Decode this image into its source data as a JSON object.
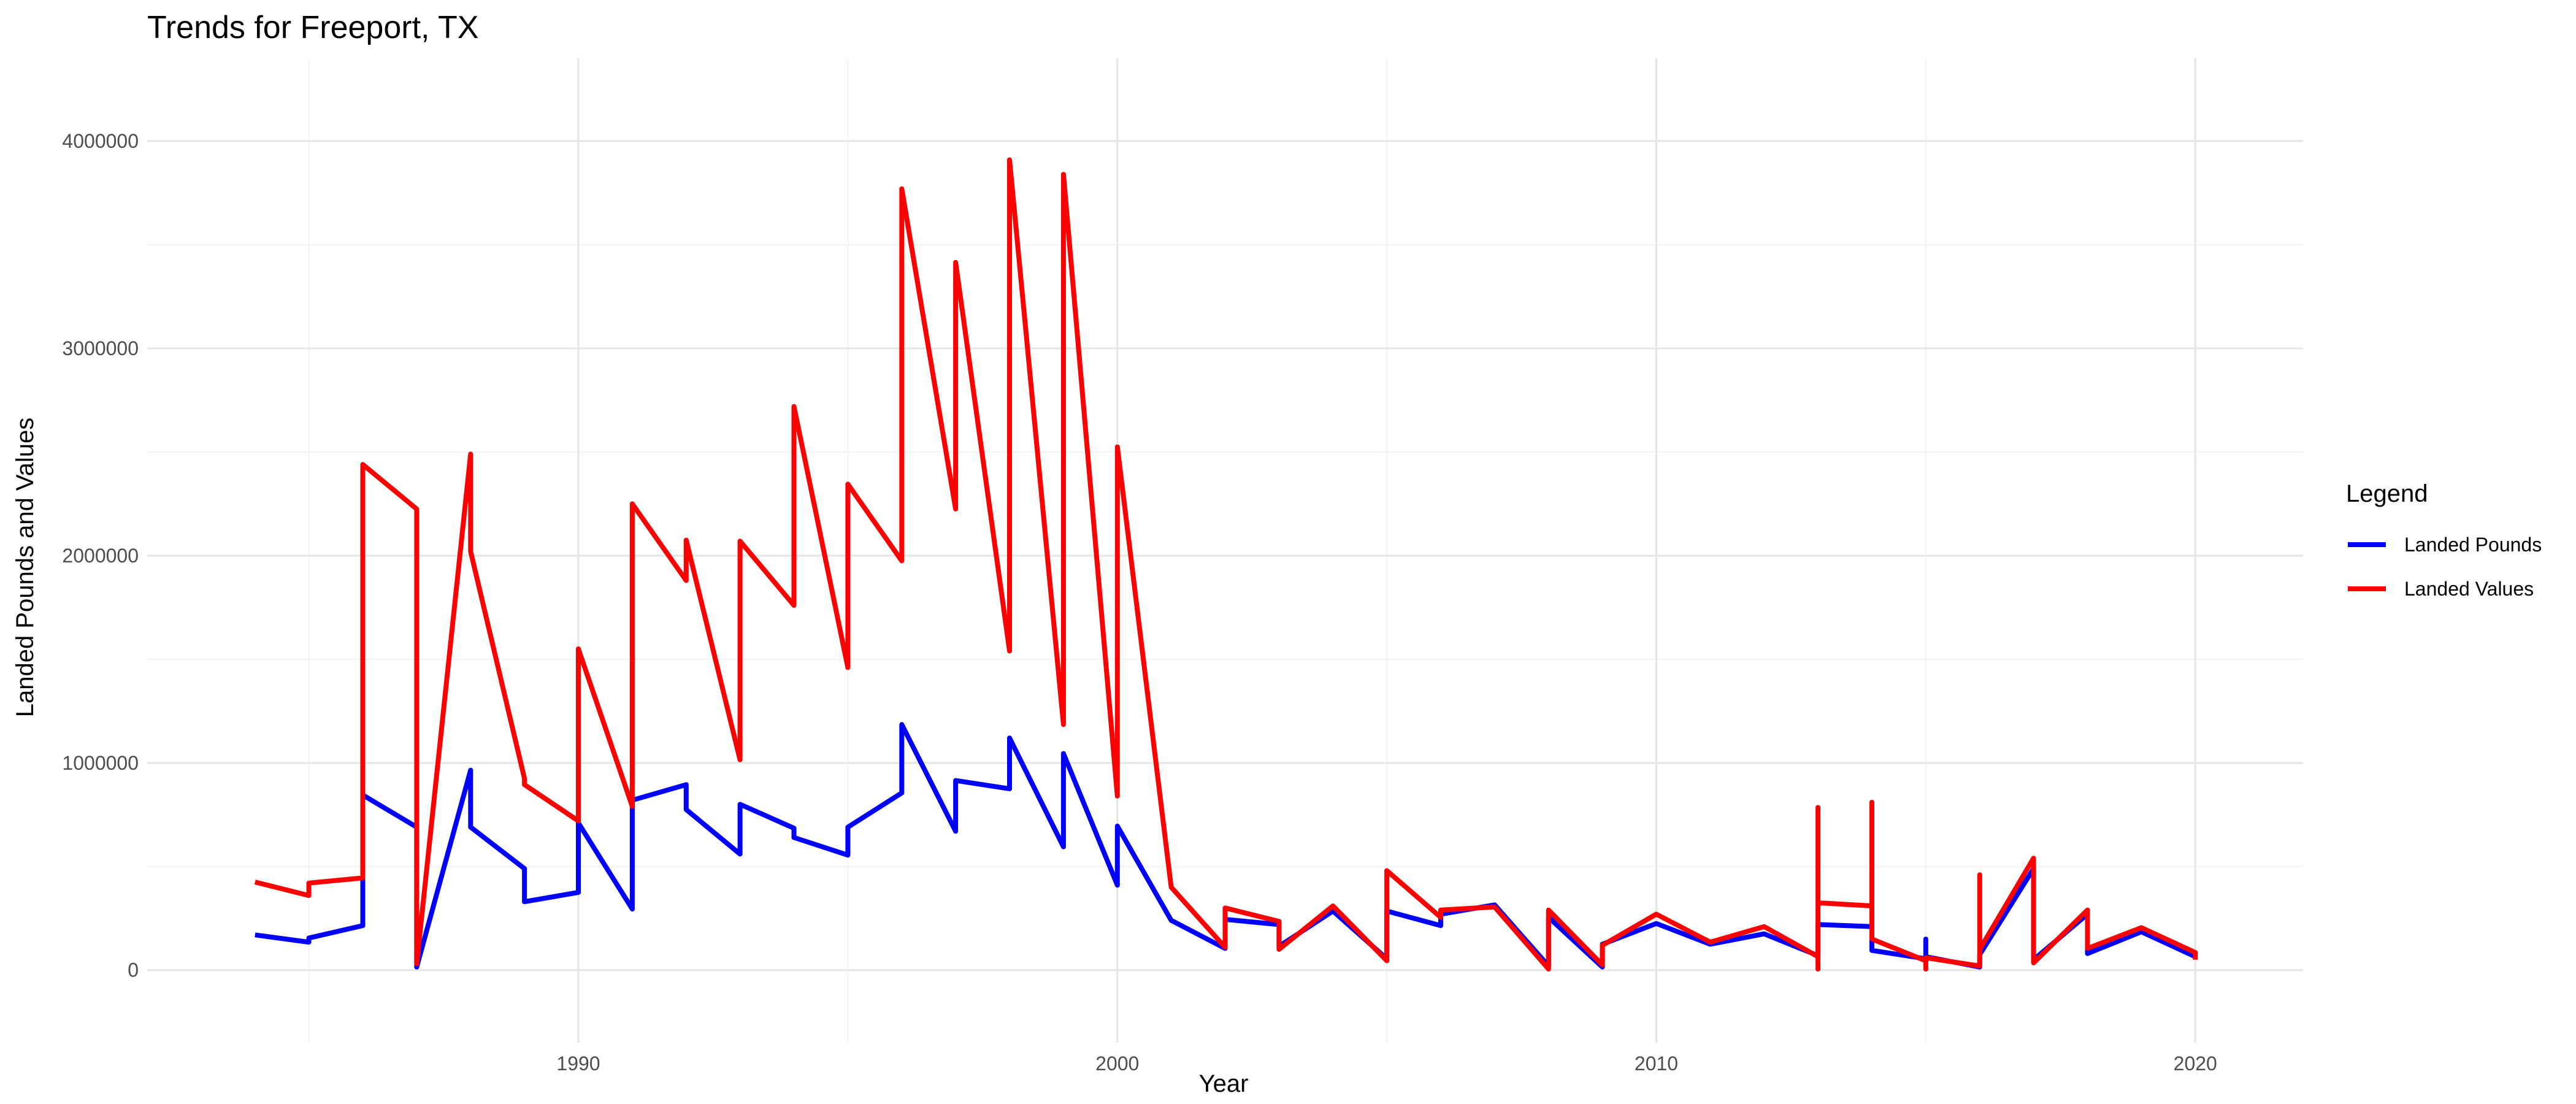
{
  "chart_data": {
    "type": "line",
    "title": "Trends for Freeport, TX",
    "xlabel": "Year",
    "ylabel": "Landed Pounds and Values",
    "xlim": [
      1982,
      2022
    ],
    "ylim": [
      -350000,
      4400000
    ],
    "x_ticks": [
      1990,
      2000,
      2010,
      2020
    ],
    "y_ticks": [
      0,
      1000000,
      2000000,
      3000000,
      4000000
    ],
    "x_tick_labels": [
      "1990",
      "2000",
      "2010",
      "2020"
    ],
    "y_tick_labels": [
      "0",
      "1000000",
      "2000000",
      "3000000",
      "4000000"
    ],
    "grid": true,
    "legend": {
      "title": "Legend",
      "position": "right"
    },
    "series": [
      {
        "name": "Landed Pounds",
        "color": "#0000FF",
        "points": [
          [
            1984,
            170000
          ],
          [
            1985,
            135000
          ],
          [
            1985,
            155000
          ],
          [
            1986,
            215000
          ],
          [
            1986,
            845000
          ],
          [
            1987,
            690000
          ],
          [
            1987,
            15000
          ],
          [
            1988,
            965000
          ],
          [
            1988,
            690000
          ],
          [
            1989,
            490000
          ],
          [
            1989,
            330000
          ],
          [
            1990,
            375000
          ],
          [
            1990,
            710000
          ],
          [
            1991,
            295000
          ],
          [
            1991,
            820000
          ],
          [
            1992,
            895000
          ],
          [
            1992,
            775000
          ],
          [
            1993,
            560000
          ],
          [
            1993,
            800000
          ],
          [
            1994,
            685000
          ],
          [
            1994,
            640000
          ],
          [
            1995,
            555000
          ],
          [
            1995,
            690000
          ],
          [
            1996,
            855000
          ],
          [
            1996,
            1185000
          ],
          [
            1997,
            670000
          ],
          [
            1997,
            915000
          ],
          [
            1998,
            875000
          ],
          [
            1998,
            1120000
          ],
          [
            1999,
            595000
          ],
          [
            1999,
            1045000
          ],
          [
            2000,
            410000
          ],
          [
            2000,
            695000
          ],
          [
            2001,
            240000
          ],
          [
            2002,
            105000
          ],
          [
            2002,
            245000
          ],
          [
            2003,
            220000
          ],
          [
            2003,
            115000
          ],
          [
            2004,
            285000
          ],
          [
            2005,
            55000
          ],
          [
            2005,
            285000
          ],
          [
            2006,
            215000
          ],
          [
            2006,
            270000
          ],
          [
            2007,
            315000
          ],
          [
            2008,
            20000
          ],
          [
            2008,
            255000
          ],
          [
            2009,
            15000
          ],
          [
            2009,
            125000
          ],
          [
            2010,
            225000
          ],
          [
            2011,
            125000
          ],
          [
            2012,
            175000
          ],
          [
            2013,
            70000
          ],
          [
            2013,
            220000
          ],
          [
            2014,
            210000
          ],
          [
            2014,
            95000
          ],
          [
            2015,
            55000
          ],
          [
            2015,
            150000
          ],
          [
            2015,
            65000
          ],
          [
            2016,
            15000
          ],
          [
            2016,
            75000
          ],
          [
            2017,
            490000
          ],
          [
            2017,
            50000
          ],
          [
            2018,
            270000
          ],
          [
            2018,
            80000
          ],
          [
            2019,
            185000
          ],
          [
            2020,
            65000
          ]
        ]
      },
      {
        "name": "Landed Values",
        "color": "#FF0000",
        "points": [
          [
            1984,
            425000
          ],
          [
            1985,
            360000
          ],
          [
            1985,
            420000
          ],
          [
            1986,
            445000
          ],
          [
            1986,
            2440000
          ],
          [
            1987,
            2225000
          ],
          [
            1987,
            30000
          ],
          [
            1988,
            2490000
          ],
          [
            1988,
            2020000
          ],
          [
            1989,
            925000
          ],
          [
            1989,
            895000
          ],
          [
            1990,
            720000
          ],
          [
            1990,
            1550000
          ],
          [
            1991,
            790000
          ],
          [
            1991,
            2250000
          ],
          [
            1992,
            1880000
          ],
          [
            1992,
            2075000
          ],
          [
            1993,
            1015000
          ],
          [
            1993,
            2070000
          ],
          [
            1994,
            1760000
          ],
          [
            1994,
            2720000
          ],
          [
            1995,
            1460000
          ],
          [
            1995,
            2345000
          ],
          [
            1996,
            1975000
          ],
          [
            1996,
            3770000
          ],
          [
            1997,
            2225000
          ],
          [
            1997,
            3415000
          ],
          [
            1998,
            1540000
          ],
          [
            1998,
            3910000
          ],
          [
            1999,
            1185000
          ],
          [
            1999,
            3840000
          ],
          [
            2000,
            840000
          ],
          [
            2000,
            2525000
          ],
          [
            2001,
            400000
          ],
          [
            2002,
            110000
          ],
          [
            2002,
            300000
          ],
          [
            2003,
            235000
          ],
          [
            2003,
            100000
          ],
          [
            2004,
            310000
          ],
          [
            2005,
            45000
          ],
          [
            2005,
            480000
          ],
          [
            2006,
            255000
          ],
          [
            2006,
            290000
          ],
          [
            2007,
            305000
          ],
          [
            2008,
            5000
          ],
          [
            2008,
            290000
          ],
          [
            2009,
            25000
          ],
          [
            2009,
            120000
          ],
          [
            2010,
            270000
          ],
          [
            2011,
            135000
          ],
          [
            2012,
            210000
          ],
          [
            2013,
            65000
          ],
          [
            2013,
            5000
          ],
          [
            2013,
            785000
          ],
          [
            2013,
            325000
          ],
          [
            2014,
            310000
          ],
          [
            2014,
            810000
          ],
          [
            2014,
            150000
          ],
          [
            2015,
            45000
          ],
          [
            2015,
            5000
          ],
          [
            2015,
            60000
          ],
          [
            2016,
            20000
          ],
          [
            2016,
            460000
          ],
          [
            2016,
            100000
          ],
          [
            2017,
            540000
          ],
          [
            2017,
            35000
          ],
          [
            2018,
            290000
          ],
          [
            2018,
            105000
          ],
          [
            2019,
            205000
          ],
          [
            2020,
            85000
          ],
          [
            2020,
            50000
          ]
        ]
      }
    ]
  }
}
